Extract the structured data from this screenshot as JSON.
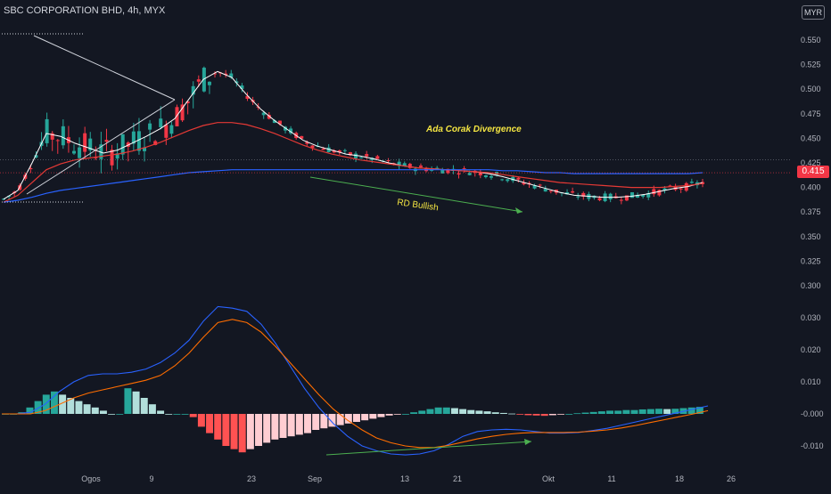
{
  "header": {
    "symbol": "SBC CORPORATION BHD, 4h, MYX",
    "currency": "MYR"
  },
  "last_price": "0.415",
  "colors": {
    "bg": "#131722",
    "up": "#26a69a",
    "down": "#f23645",
    "ema_fast": "#ffffff",
    "ema_mid": "#e53935",
    "ema_slow": "#2962ff",
    "macd": "#2962ff",
    "signal": "#ff6d00",
    "annotation": "#f5e642",
    "divergence": "#4caf50"
  },
  "chart_data": [
    {
      "type": "line",
      "title": "SBC CORPORATION BHD, 4h, MYX",
      "xlabel": "",
      "ylabel": "",
      "ylim": [
        0.28,
        0.59
      ],
      "x_ticks": [
        "Ogos",
        "9",
        "23",
        "Sep",
        "13",
        "21",
        "Okt",
        "11",
        "18",
        "26"
      ],
      "y_ticks": [
        "0.550",
        "0.525",
        "0.500",
        "0.475",
        "0.450",
        "0.425",
        "0.400",
        "0.375",
        "0.350",
        "0.325",
        "0.300"
      ],
      "annotations": [
        "Ada Corak Divergence",
        "RD Bullish"
      ],
      "grid": false,
      "legend": "none",
      "series": [
        {
          "values": [
            0.388,
            0.397,
            0.425,
            0.455,
            0.452,
            0.445,
            0.44,
            0.435,
            0.438,
            0.445,
            0.452,
            0.46,
            0.47,
            0.49,
            0.51,
            0.518,
            0.512,
            0.495,
            0.48,
            0.468,
            0.458,
            0.448,
            0.442,
            0.438,
            0.434,
            0.432,
            0.429,
            0.425,
            0.422,
            0.42,
            0.419,
            0.418,
            0.417,
            0.416,
            0.414,
            0.411,
            0.407,
            0.403,
            0.399,
            0.395,
            0.392,
            0.391,
            0.39,
            0.39,
            0.391,
            0.393,
            0.396,
            0.399,
            0.401,
            0.405
          ]
        },
        {
          "values": [
            0.385,
            0.392,
            0.405,
            0.418,
            0.424,
            0.428,
            0.43,
            0.432,
            0.434,
            0.437,
            0.441,
            0.446,
            0.452,
            0.458,
            0.463,
            0.466,
            0.466,
            0.464,
            0.46,
            0.455,
            0.449,
            0.443,
            0.438,
            0.434,
            0.431,
            0.428,
            0.426,
            0.424,
            0.422,
            0.42,
            0.419,
            0.418,
            0.417,
            0.416,
            0.415,
            0.413,
            0.411,
            0.409,
            0.407,
            0.405,
            0.404,
            0.403,
            0.402,
            0.401,
            0.4,
            0.4,
            0.4,
            0.401,
            0.402,
            0.404
          ]
        },
        {
          "values": [
            0.385,
            0.387,
            0.39,
            0.394,
            0.397,
            0.399,
            0.401,
            0.403,
            0.405,
            0.407,
            0.409,
            0.411,
            0.413,
            0.415,
            0.416,
            0.417,
            0.418,
            0.418,
            0.418,
            0.418,
            0.418,
            0.418,
            0.418,
            0.418,
            0.418,
            0.418,
            0.418,
            0.418,
            0.418,
            0.418,
            0.418,
            0.418,
            0.418,
            0.418,
            0.418,
            0.417,
            0.417,
            0.416,
            0.415,
            0.415,
            0.414,
            0.414,
            0.414,
            0.414,
            0.414,
            0.414,
            0.414,
            0.414,
            0.414,
            0.415
          ]
        }
      ]
    },
    {
      "type": "bar",
      "title": "",
      "xlabel": "",
      "ylabel": "",
      "ylim": [
        -0.0145,
        0.036
      ],
      "y_ticks": [
        "0.030",
        "0.020",
        "0.010",
        "-0.000",
        "-0.010"
      ],
      "grid": false,
      "legend": "none",
      "histogram": [
        0.0,
        0.0,
        0.0005,
        0.002,
        0.004,
        0.006,
        0.007,
        0.006,
        0.005,
        0.004,
        0.003,
        0.002,
        0.001,
        0.0,
        0.0,
        0.008,
        0.007,
        0.005,
        0.003,
        0.001,
        0.0,
        0.0,
        0.0,
        -0.001,
        -0.004,
        -0.006,
        -0.008,
        -0.01,
        -0.011,
        -0.012,
        -0.011,
        -0.01,
        -0.009,
        -0.008,
        -0.0075,
        -0.007,
        -0.0065,
        -0.006,
        -0.005,
        -0.0045,
        -0.004,
        -0.0035,
        -0.003,
        -0.0025,
        -0.002,
        -0.0015,
        -0.001,
        -0.0005,
        -0.0002,
        0.0,
        0.0005,
        0.001,
        0.0015,
        0.002,
        0.002,
        0.0018,
        0.0015,
        0.0012,
        0.001,
        0.0008,
        0.0005,
        0.0003,
        0.0001,
        -0.0002,
        -0.0004,
        -0.0005,
        -0.0006,
        -0.0004,
        -0.0002,
        0.0,
        0.0002,
        0.0004,
        0.0006,
        0.0008,
        0.001,
        0.001,
        0.0012,
        0.0012,
        0.0014,
        0.0015,
        0.0016,
        0.0015,
        0.0016,
        0.0018,
        0.002,
        0.0022
      ],
      "series": [
        {
          "values": [
            0.0,
            0.0,
            0.0005,
            0.003,
            0.007,
            0.01,
            0.012,
            0.0125,
            0.0125,
            0.013,
            0.014,
            0.016,
            0.019,
            0.023,
            0.029,
            0.0335,
            0.033,
            0.032,
            0.028,
            0.022,
            0.015,
            0.008,
            0.002,
            -0.003,
            -0.007,
            -0.01,
            -0.0115,
            -0.0125,
            -0.0128,
            -0.0125,
            -0.0115,
            -0.0095,
            -0.007,
            -0.0055,
            -0.005,
            -0.0048,
            -0.005,
            -0.0055,
            -0.006,
            -0.006,
            -0.0058,
            -0.0052,
            -0.0045,
            -0.0035,
            -0.0025,
            -0.0015,
            -0.0005,
            0.0005,
            0.0015,
            0.0025
          ]
        },
        {
          "values": [
            0.0,
            0.0,
            0.0,
            0.001,
            0.003,
            0.005,
            0.0065,
            0.0075,
            0.0085,
            0.0095,
            0.0105,
            0.012,
            0.015,
            0.019,
            0.024,
            0.0285,
            0.0295,
            0.0285,
            0.0255,
            0.021,
            0.016,
            0.011,
            0.006,
            0.0015,
            -0.002,
            -0.005,
            -0.0075,
            -0.009,
            -0.01,
            -0.0105,
            -0.0105,
            -0.0098,
            -0.0088,
            -0.0078,
            -0.007,
            -0.0064,
            -0.006,
            -0.0058,
            -0.0058,
            -0.0058,
            -0.0057,
            -0.0054,
            -0.005,
            -0.0044,
            -0.0036,
            -0.0027,
            -0.0018,
            -0.0009,
            0.0,
            0.001
          ]
        }
      ]
    }
  ]
}
